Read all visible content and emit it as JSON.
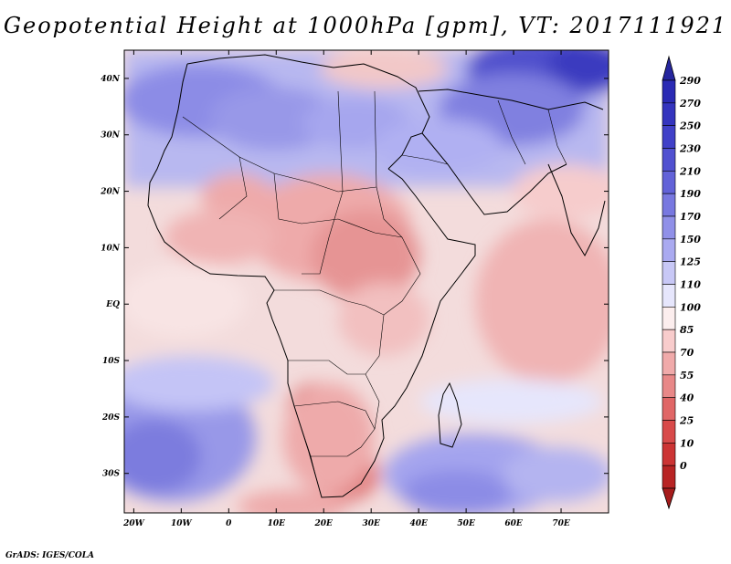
{
  "title": "Geopotential Height at 1000hPa [gpm], VT: 2017111921",
  "credit": "GrADS: IGES/COLA",
  "map": {
    "lon_range": [
      -22,
      80
    ],
    "lat_range": [
      -37,
      45
    ],
    "lat_ticks": [
      {
        "v": 40,
        "label": "40N"
      },
      {
        "v": 30,
        "label": "30N"
      },
      {
        "v": 20,
        "label": "20N"
      },
      {
        "v": 10,
        "label": "10N"
      },
      {
        "v": 0,
        "label": "EQ"
      },
      {
        "v": -10,
        "label": "10S"
      },
      {
        "v": -20,
        "label": "20S"
      },
      {
        "v": -30,
        "label": "30S"
      }
    ],
    "lon_ticks": [
      {
        "v": -20,
        "label": "20W"
      },
      {
        "v": -10,
        "label": "10W"
      },
      {
        "v": 0,
        "label": "0"
      },
      {
        "v": 10,
        "label": "10E"
      },
      {
        "v": 20,
        "label": "20E"
      },
      {
        "v": 30,
        "label": "30E"
      },
      {
        "v": 40,
        "label": "40E"
      },
      {
        "v": 50,
        "label": "50E"
      },
      {
        "v": 60,
        "label": "60E"
      },
      {
        "v": 70,
        "label": "70E"
      }
    ]
  },
  "colorbar": {
    "levels": [
      {
        "label": "290",
        "color": "#2a2ab4"
      },
      {
        "label": "270",
        "color": "#3434be"
      },
      {
        "label": "250",
        "color": "#4040c8"
      },
      {
        "label": "230",
        "color": "#5050d0"
      },
      {
        "label": "210",
        "color": "#6262d8"
      },
      {
        "label": "190",
        "color": "#7878e0"
      },
      {
        "label": "170",
        "color": "#9090e8"
      },
      {
        "label": "150",
        "color": "#aaaaf0"
      },
      {
        "label": "125",
        "color": "#c8c8f6"
      },
      {
        "label": "110",
        "color": "#e6e6fc"
      },
      {
        "label": "100",
        "color": "#fceeee"
      },
      {
        "label": "85",
        "color": "#f8cccc"
      },
      {
        "label": "70",
        "color": "#f0aaaa"
      },
      {
        "label": "55",
        "color": "#e88888"
      },
      {
        "label": "40",
        "color": "#e06666"
      },
      {
        "label": "25",
        "color": "#d84a4a"
      },
      {
        "label": "10",
        "color": "#cc3434"
      },
      {
        "label": "0",
        "color": "#b82424"
      }
    ],
    "top_arrow_color": "#26269e",
    "bottom_arrow_color": "#a61c1c"
  }
}
